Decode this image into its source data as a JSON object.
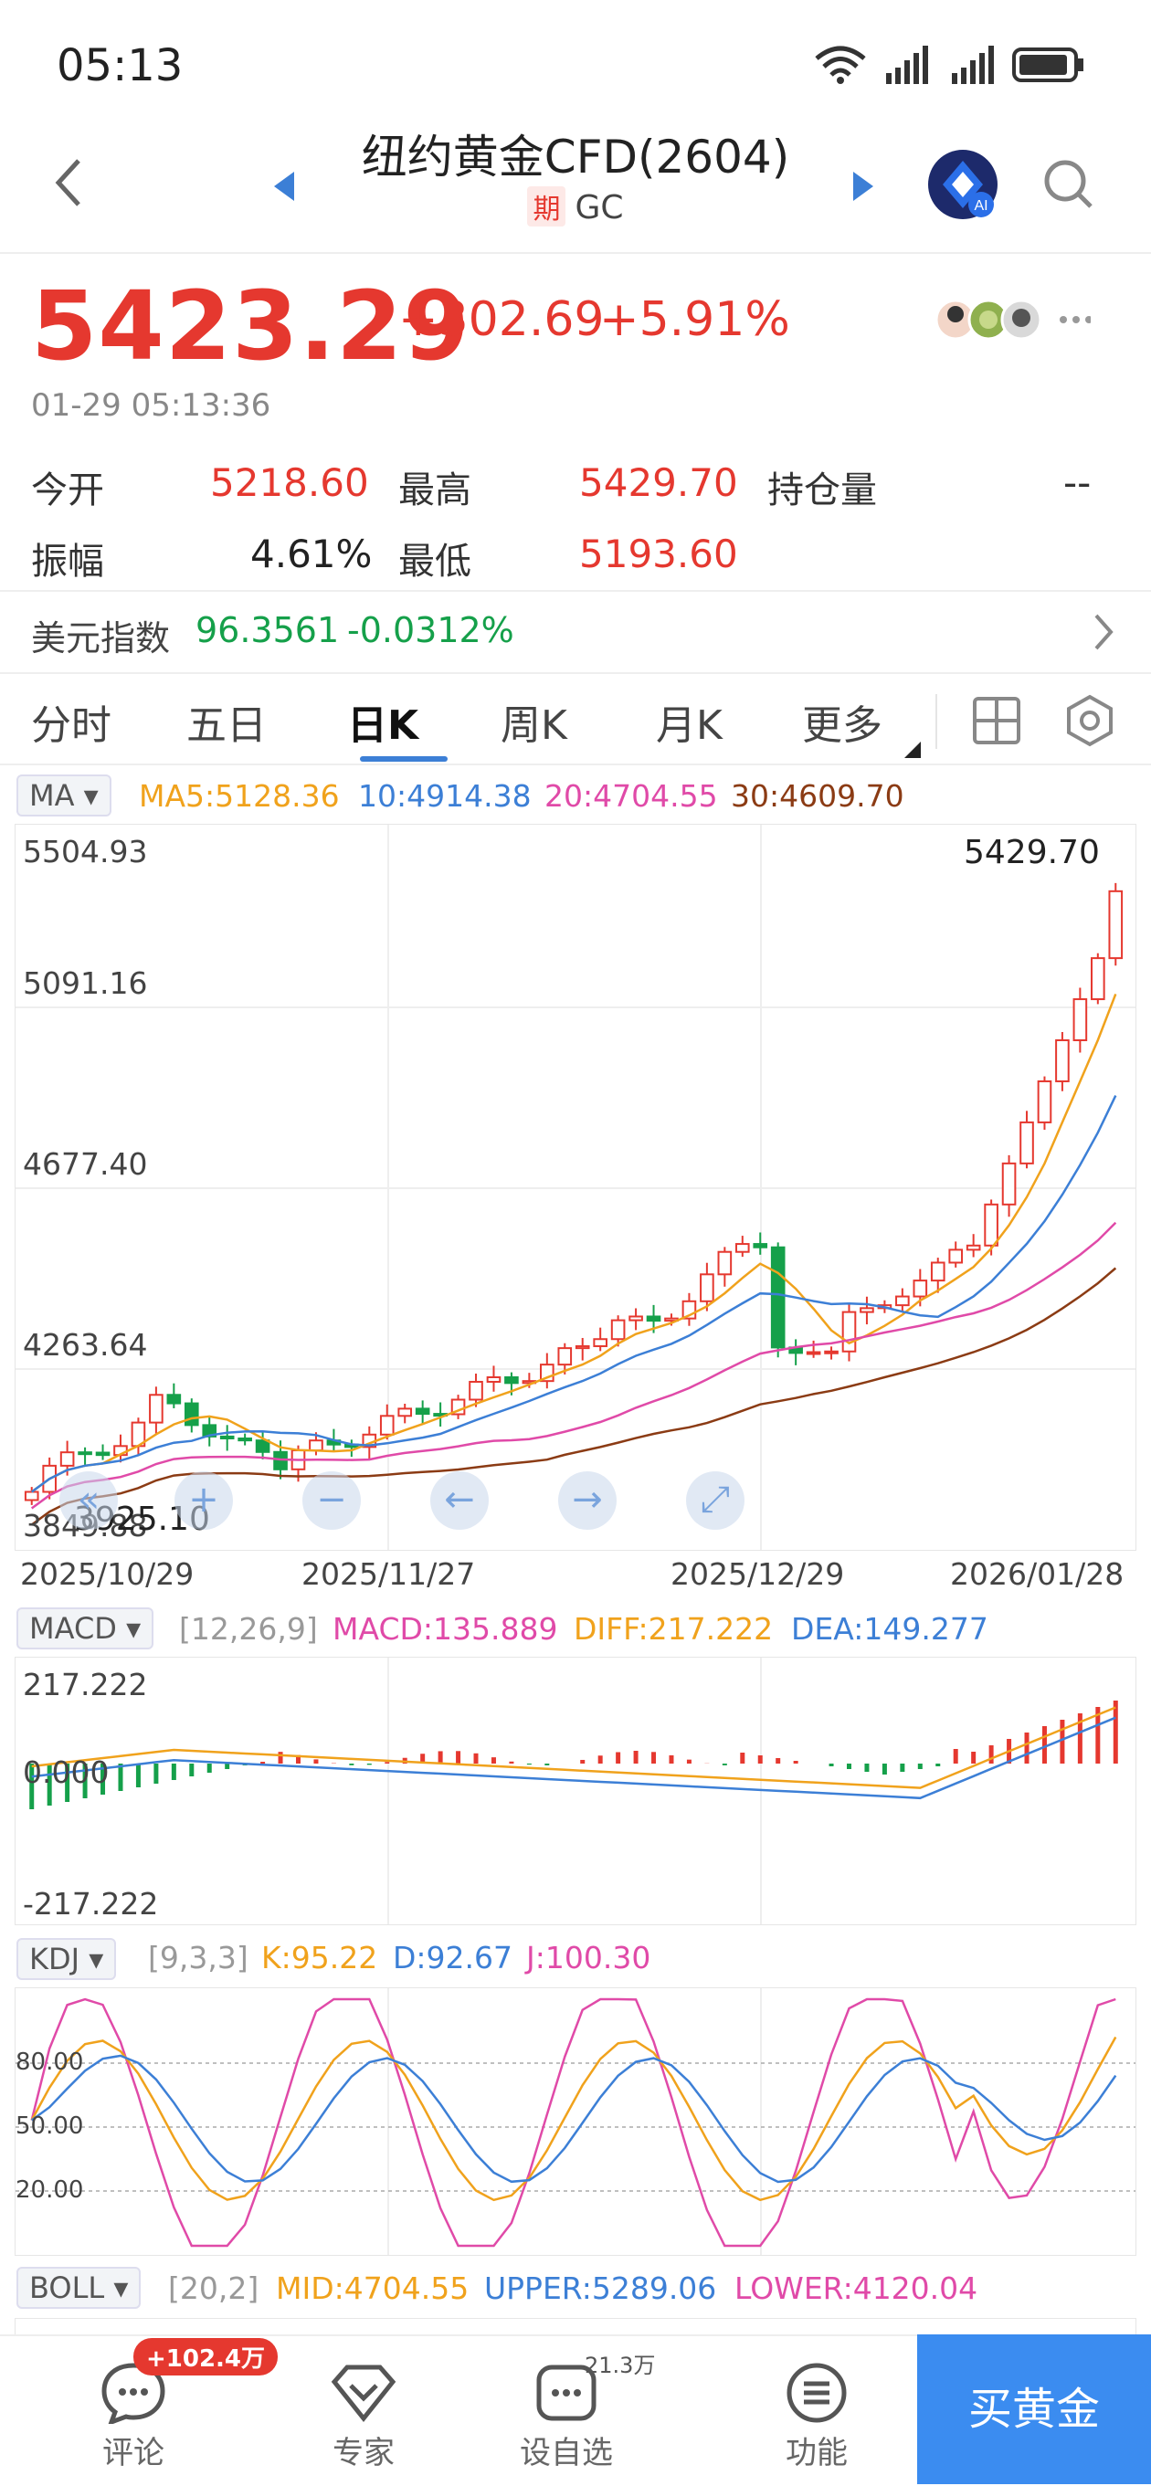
{
  "status": {
    "time": "05:13"
  },
  "header": {
    "title": "纽约黄金CFD(2604)",
    "tag": "期",
    "code": "GC"
  },
  "quote": {
    "price": "5423.29",
    "change": "+302.69",
    "change_pct": "+5.91%",
    "timestamp": "01-29 05:13:36",
    "open_label": "今开",
    "open": "5218.60",
    "high_label": "最高",
    "high": "5429.70",
    "oi_label": "持仓量",
    "oi": "--",
    "amp_label": "振幅",
    "amp": "4.61%",
    "low_label": "最低",
    "low": "5193.60"
  },
  "usd_index": {
    "label": "美元指数",
    "value": "96.3561",
    "change": "-0.0312%"
  },
  "tabs": [
    "分时",
    "五日",
    "日K",
    "周K",
    "月K",
    "更多"
  ],
  "active_tab": "日K",
  "ma_bar": {
    "btn": "MA",
    "ma5": "MA5:5128.36",
    "ma10": "10:4914.38",
    "ma20": "20:4704.55",
    "ma30": "30:4609.70"
  },
  "kline": {
    "y_labels": [
      "5504.93",
      "5091.16",
      "4677.40",
      "4263.64",
      "3849.88"
    ],
    "max_label": "5429.70",
    "min_label": "3925.10",
    "x_labels": [
      "2025/10/29",
      "2025/11/27",
      "2025/12/29",
      "2026/01/28"
    ]
  },
  "macd_bar": {
    "btn": "MACD",
    "params": "[12,26,9]",
    "macd": "MACD:135.889",
    "diff": "DIFF:217.222",
    "dea": "DEA:149.277"
  },
  "macd_axis": [
    "217.222",
    "0.000",
    "-217.222"
  ],
  "kdj_bar": {
    "btn": "KDJ",
    "params": "[9,3,3]",
    "k": "K:95.22",
    "d": "D:92.67",
    "j": "J:100.30"
  },
  "kdj_axis": [
    "80.00",
    "50.00",
    "20.00"
  ],
  "boll_bar": {
    "btn": "BOLL",
    "params": "[20,2]",
    "mid": "MID:4704.55",
    "upper": "UPPER:5289.06",
    "lower": "LOWER:4120.04"
  },
  "toolbar": {
    "comment": "评论",
    "comment_badge": "+102.4万",
    "expert": "专家",
    "watch": "设自选",
    "watch_badge": "21.3万",
    "func": "功能",
    "buy": "买黄金"
  },
  "colors": {
    "red": "#e5382f",
    "green": "#15a04a",
    "ma5": "#f0a21c",
    "ma10": "#3c7fd6",
    "ma20": "#e04aa8",
    "ma30": "#8b3b14",
    "buy": "#3b8cf0"
  }
}
